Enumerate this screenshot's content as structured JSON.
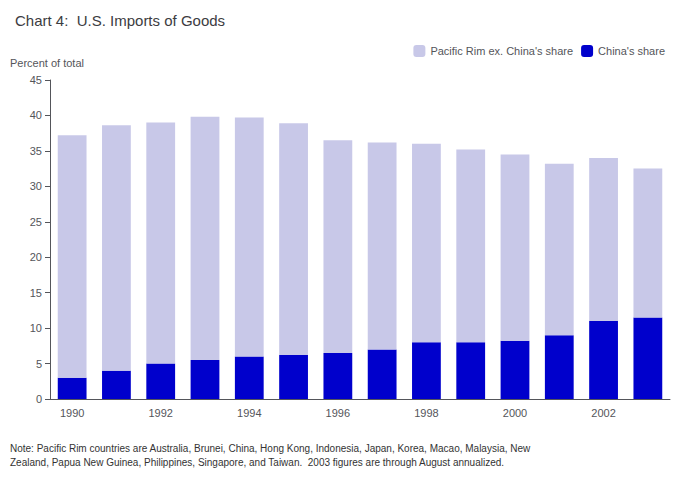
{
  "chart_data": {
    "type": "bar",
    "title": "Chart 4:  U.S. Imports of Goods",
    "ylabel": "Percent of total",
    "categories": [
      "1990",
      null,
      "1992",
      null,
      "1994",
      null,
      "1996",
      null,
      "1998",
      null,
      "2000",
      null,
      "2002",
      null
    ],
    "series": [
      {
        "name": "China's share",
        "color": "#0000CC",
        "values": [
          3.0,
          4.0,
          5.0,
          5.5,
          6.0,
          6.2,
          6.5,
          7.0,
          8.0,
          8.0,
          8.2,
          9.0,
          11.0,
          11.5
        ]
      },
      {
        "name": "Pacific Rim ex. China's share",
        "color": "#C8C8E8",
        "values": [
          34.2,
          34.6,
          34.0,
          34.3,
          33.7,
          32.7,
          30.0,
          29.2,
          28.0,
          27.2,
          26.3,
          24.2,
          23.0,
          21.0
        ]
      }
    ],
    "stacked": true,
    "ylim": [
      0,
      45
    ],
    "yticks": [
      0,
      5,
      10,
      15,
      20,
      25,
      30,
      35,
      40,
      45
    ],
    "grid": false,
    "legend": "upper right",
    "annotations": [
      "Note: Pacific Rim countries are Australia, Brunei, China, Hong Kong, Indonesia, Japan, Korea, Macao, Malaysia, New\nZealand, Papua New Guinea, Philippines, Singapore, and Taiwan.  2003 figures are through August annualized."
    ]
  }
}
